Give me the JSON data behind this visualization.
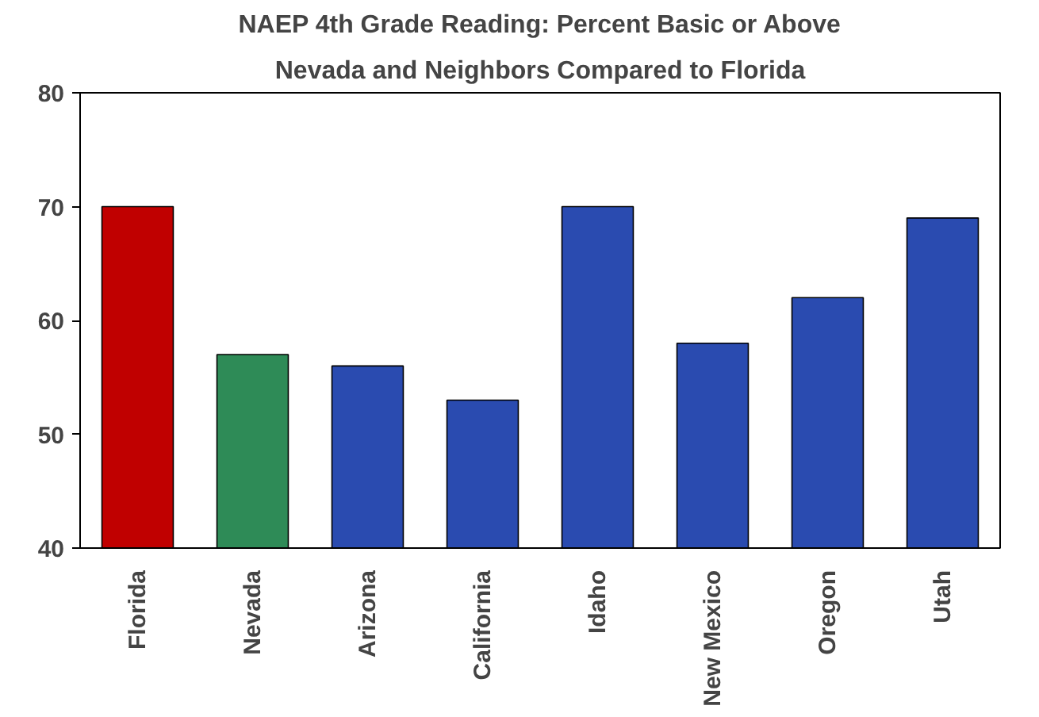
{
  "chart_data": {
    "type": "bar",
    "title": "NAEP 4th Grade Reading: Percent Basic or Above",
    "subtitle": "Nevada and Neighbors Compared to Florida",
    "categories": [
      "Florida",
      "Nevada",
      "Arizona",
      "California",
      "Idaho",
      "New Mexico",
      "Oregon",
      "Utah"
    ],
    "values": [
      70,
      57,
      56,
      53,
      70,
      58,
      62,
      69
    ],
    "colors": [
      "#c00000",
      "#2e8b57",
      "#2a4bb0",
      "#2a4bb0",
      "#2a4bb0",
      "#2a4bb0",
      "#2a4bb0",
      "#2a4bb0"
    ],
    "ylim": [
      40,
      80
    ],
    "yticks": [
      40,
      50,
      60,
      70,
      80
    ],
    "grid": false
  }
}
